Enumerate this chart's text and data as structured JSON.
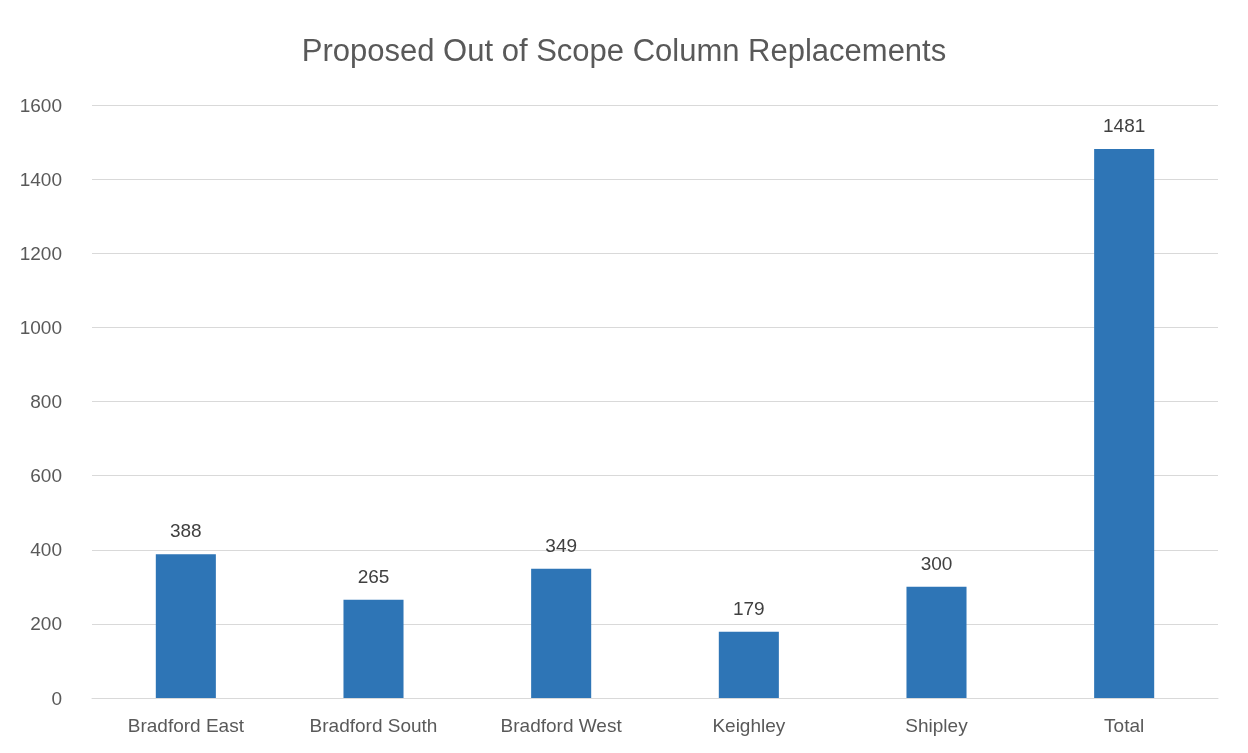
{
  "chart_data": {
    "type": "bar",
    "title": "Proposed Out of Scope Column Replacements",
    "categories": [
      "Bradford East",
      "Bradford South",
      "Bradford West",
      "Keighley",
      "Shipley",
      "Total"
    ],
    "values": [
      388,
      265,
      349,
      179,
      300,
      1481
    ],
    "color": "#2e75b6",
    "ylim": [
      0,
      1600
    ],
    "yticks": [
      0,
      200,
      400,
      600,
      800,
      1000,
      1200,
      1400,
      1600
    ],
    "grid": "y",
    "data_labels": true
  }
}
